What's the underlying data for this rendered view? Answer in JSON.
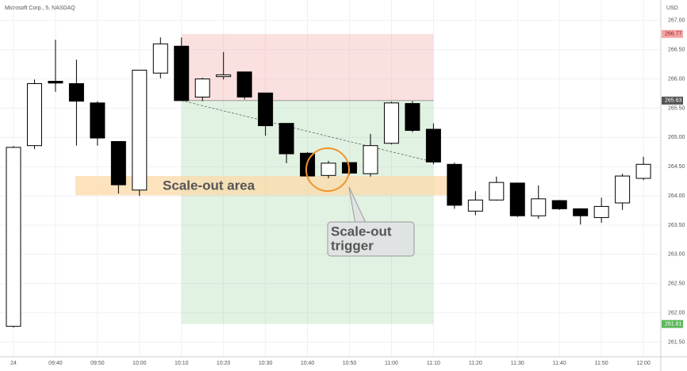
{
  "chart_data": {
    "type": "candlestick",
    "title": "Microsoft Corp., 5, NASDAQ",
    "currency": "USD",
    "categories": [
      "24",
      null,
      "09:40",
      null,
      "09:50",
      null,
      "10:00",
      null,
      "10:10",
      null,
      "10:20",
      null,
      "10:30",
      null,
      "10:40",
      null,
      "10:50",
      null,
      "11:00",
      null,
      "11:10",
      null,
      "11:20",
      null,
      "11:30",
      null,
      "11:40",
      null,
      "11:50",
      null,
      "12:00"
    ],
    "open": [
      261.77,
      264.86,
      265.96,
      265.92,
      265.59,
      264.93,
      264.1,
      266.1,
      266.56,
      265.69,
      266.04,
      266.12,
      265.76,
      265.24,
      264.73,
      264.35,
      264.57,
      264.38,
      264.9,
      265.58,
      265.14,
      264.54,
      263.74,
      263.93,
      264.22,
      263.66,
      263.92,
      263.78,
      263.63,
      263.88,
      264.3
    ],
    "high": [
      264.85,
      265.99,
      266.67,
      266.33,
      265.62,
      264.93,
      266.15,
      266.71,
      266.71,
      266.02,
      266.46,
      266.12,
      265.76,
      265.24,
      264.75,
      264.6,
      264.57,
      265.06,
      265.61,
      265.62,
      265.24,
      264.57,
      264.08,
      264.33,
      264.22,
      264.18,
      263.93,
      263.79,
      263.97,
      264.38,
      264.67
    ],
    "low": [
      261.75,
      264.8,
      265.78,
      264.86,
      264.86,
      264.04,
      264.0,
      266.01,
      265.63,
      265.62,
      265.99,
      265.65,
      265.03,
      264.56,
      264.3,
      264.3,
      264.36,
      264.33,
      264.88,
      265.09,
      264.54,
      263.78,
      263.67,
      263.92,
      263.64,
      263.61,
      263.76,
      263.51,
      263.54,
      263.76,
      264.27
    ],
    "close": [
      264.83,
      265.92,
      265.93,
      265.62,
      264.99,
      264.19,
      266.15,
      266.6,
      265.63,
      266.0,
      266.07,
      265.69,
      265.2,
      264.72,
      264.34,
      264.56,
      264.39,
      264.86,
      265.59,
      265.12,
      264.58,
      263.84,
      263.93,
      264.23,
      263.66,
      263.95,
      263.78,
      263.66,
      263.82,
      264.34,
      264.54
    ],
    "up_color": "#ffffff",
    "down_color": "#000000",
    "ylim": [
      261.25,
      267.35
    ],
    "yticks": [
      {
        "value": 261.5,
        "label": "261.50"
      },
      {
        "value": 262,
        "label": "262.00"
      },
      {
        "value": 262.5,
        "label": "262.50"
      },
      {
        "value": 263,
        "label": "263.00"
      },
      {
        "value": 263.5,
        "label": "263.50"
      },
      {
        "value": 264,
        "label": "264.00"
      },
      {
        "value": 264.5,
        "label": "264.50"
      },
      {
        "value": 265,
        "label": "265.00"
      },
      {
        "value": 265.5,
        "label": "265.50"
      },
      {
        "value": 266,
        "label": "266.00"
      },
      {
        "value": 266.5,
        "label": "266.50"
      },
      {
        "value": 267,
        "label": "267.00"
      }
    ],
    "grid": true,
    "levels": [
      {
        "value": 266.77,
        "label": "266.77",
        "color": "#f4a6a6"
      },
      {
        "value": 265.63,
        "label": "265.63",
        "color": "#555555"
      },
      {
        "value": 261.81,
        "label": "261.81",
        "color": "#5cb85c"
      }
    ],
    "scale_out_area": {
      "text": "Scale-out area",
      "range": [
        264.01,
        264.34
      ],
      "color": "#fbd9a8"
    },
    "trigger": {
      "lines": [
        "Scale-out",
        "trigger"
      ]
    }
  }
}
